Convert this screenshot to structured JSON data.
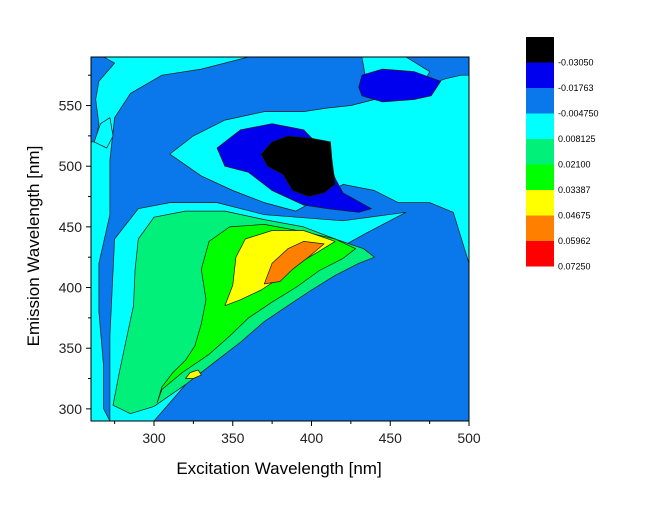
{
  "chart_data": {
    "type": "contour",
    "xlabel": "Excitation Wavelength [nm]",
    "ylabel": "Emission Wavelength [nm]",
    "xlim": [
      260,
      500
    ],
    "ylim": [
      290,
      590
    ],
    "x_ticks": [
      300,
      350,
      400,
      450,
      500
    ],
    "y_ticks": [
      300,
      350,
      400,
      450,
      500,
      550
    ],
    "x_tick_labels": [
      "300",
      "350",
      "400",
      "450",
      "500"
    ],
    "y_tick_labels": [
      "300",
      "350",
      "400",
      "450",
      "500",
      "550"
    ],
    "legend": {
      "placement": "right",
      "levels": [
        {
          "label": "-0.03050",
          "color": "#000000"
        },
        {
          "label": "-0.01763",
          "color": "#0000ee"
        },
        {
          "label": "-0.004750",
          "color": "#0a78ea"
        },
        {
          "label": "0.008125",
          "color": "#00ffff"
        },
        {
          "label": "0.02100",
          "color": "#00f07a"
        },
        {
          "label": "0.03387",
          "color": "#00ff00"
        },
        {
          "label": "0.04675",
          "color": "#ffff00"
        },
        {
          "label": "0.05962",
          "color": "#ff8000"
        },
        {
          "label": "0.07250",
          "color": "#ff0000"
        }
      ]
    },
    "background_color": "#0a78ea",
    "regions": [
      {
        "name": "cyan-left-band",
        "level": 3,
        "points": [
          [
            260,
            290
          ],
          [
            260,
            520
          ],
          [
            263,
            520
          ],
          [
            265,
            535
          ],
          [
            263,
            555
          ],
          [
            265,
            570
          ],
          [
            275,
            585
          ],
          [
            268,
            590
          ],
          [
            360,
            590
          ],
          [
            330,
            580
          ],
          [
            305,
            575
          ],
          [
            285,
            560
          ],
          [
            275,
            540
          ],
          [
            272,
            505
          ],
          [
            272,
            460
          ],
          [
            265,
            420
          ],
          [
            265,
            380
          ],
          [
            268,
            335
          ],
          [
            268,
            300
          ],
          [
            272,
            290
          ]
        ]
      },
      {
        "name": "cyan-emission-ridge",
        "level": 3,
        "points": [
          [
            272,
            290
          ],
          [
            272,
            360
          ],
          [
            275,
            440
          ],
          [
            290,
            465
          ],
          [
            310,
            470
          ],
          [
            340,
            470
          ],
          [
            370,
            460
          ],
          [
            420,
            455
          ],
          [
            460,
            462
          ],
          [
            435,
            445
          ],
          [
            400,
            420
          ],
          [
            370,
            390
          ],
          [
            345,
            360
          ],
          [
            320,
            320
          ],
          [
            300,
            290
          ]
        ]
      },
      {
        "name": "cyan-upper-lobe",
        "level": 3,
        "points": [
          [
            310,
            510
          ],
          [
            325,
            525
          ],
          [
            345,
            538
          ],
          [
            370,
            545
          ],
          [
            395,
            545
          ],
          [
            410,
            548
          ],
          [
            425,
            550
          ],
          [
            440,
            555
          ],
          [
            455,
            560
          ],
          [
            470,
            565
          ],
          [
            485,
            572
          ],
          [
            495,
            575
          ],
          [
            500,
            575
          ],
          [
            500,
            420
          ],
          [
            490,
            462
          ],
          [
            475,
            470
          ],
          [
            455,
            470
          ],
          [
            440,
            480
          ],
          [
            420,
            485
          ],
          [
            400,
            470
          ],
          [
            390,
            463
          ],
          [
            370,
            470
          ],
          [
            350,
            480
          ],
          [
            330,
            492
          ]
        ]
      },
      {
        "name": "cyan-corner-top-right",
        "level": 3,
        "points": [
          [
            432,
            590
          ],
          [
            460,
            590
          ],
          [
            475,
            578
          ],
          [
            470,
            565
          ],
          [
            450,
            560
          ],
          [
            435,
            568
          ]
        ]
      },
      {
        "name": "cyan-blob-left",
        "level": 3,
        "points": [
          [
            262,
            520
          ],
          [
            266,
            535
          ],
          [
            272,
            540
          ],
          [
            274,
            525
          ],
          [
            270,
            515
          ]
        ]
      },
      {
        "name": "green-main",
        "level": 4,
        "points": [
          [
            274,
            303
          ],
          [
            278,
            330
          ],
          [
            282,
            355
          ],
          [
            287,
            385
          ],
          [
            288,
            415
          ],
          [
            290,
            440
          ],
          [
            300,
            458
          ],
          [
            320,
            463
          ],
          [
            345,
            463
          ],
          [
            370,
            456
          ],
          [
            395,
            450
          ],
          [
            415,
            440
          ],
          [
            433,
            432
          ],
          [
            440,
            425
          ],
          [
            430,
            420
          ],
          [
            415,
            410
          ],
          [
            400,
            398
          ],
          [
            385,
            385
          ],
          [
            370,
            372
          ],
          [
            355,
            355
          ],
          [
            340,
            340
          ],
          [
            320,
            320
          ],
          [
            300,
            302
          ],
          [
            285,
            296
          ]
        ]
      },
      {
        "name": "green-bright",
        "level": 5,
        "points": [
          [
            302,
            305
          ],
          [
            305,
            318
          ],
          [
            312,
            330
          ],
          [
            320,
            340
          ],
          [
            326,
            352
          ],
          [
            330,
            370
          ],
          [
            333,
            390
          ],
          [
            330,
            415
          ],
          [
            335,
            438
          ],
          [
            348,
            450
          ],
          [
            370,
            452
          ],
          [
            395,
            446
          ],
          [
            415,
            440
          ],
          [
            428,
            432
          ],
          [
            420,
            424
          ],
          [
            405,
            414
          ],
          [
            390,
            400
          ],
          [
            375,
            388
          ],
          [
            360,
            375
          ],
          [
            348,
            360
          ],
          [
            335,
            345
          ],
          [
            318,
            330
          ],
          [
            305,
            316
          ]
        ]
      },
      {
        "name": "yellow-core",
        "level": 6,
        "points": [
          [
            345,
            385
          ],
          [
            350,
            402
          ],
          [
            352,
            425
          ],
          [
            358,
            440
          ],
          [
            375,
            447
          ],
          [
            395,
            447
          ],
          [
            415,
            438
          ],
          [
            405,
            430
          ],
          [
            392,
            420
          ],
          [
            380,
            408
          ],
          [
            368,
            398
          ],
          [
            355,
            390
          ]
        ]
      },
      {
        "name": "yellow-tail",
        "level": 6,
        "points": [
          [
            320,
            325
          ],
          [
            323,
            330
          ],
          [
            328,
            332
          ],
          [
            330,
            328
          ],
          [
            325,
            325
          ]
        ]
      },
      {
        "name": "orange-core",
        "level": 7,
        "points": [
          [
            370,
            403
          ],
          [
            375,
            420
          ],
          [
            385,
            432
          ],
          [
            395,
            438
          ],
          [
            408,
            436
          ],
          [
            398,
            425
          ],
          [
            388,
            415
          ],
          [
            380,
            405
          ]
        ]
      },
      {
        "name": "blue-dip-center",
        "level": 1,
        "points": [
          [
            340,
            515
          ],
          [
            355,
            530
          ],
          [
            375,
            535
          ],
          [
            395,
            530
          ],
          [
            410,
            510
          ],
          [
            415,
            490
          ],
          [
            420,
            478
          ],
          [
            438,
            465
          ],
          [
            430,
            462
          ],
          [
            410,
            465
          ],
          [
            395,
            468
          ],
          [
            375,
            480
          ],
          [
            360,
            495
          ],
          [
            345,
            500
          ]
        ]
      },
      {
        "name": "black-dip-center",
        "level": 0,
        "points": [
          [
            375,
            520
          ],
          [
            385,
            525
          ],
          [
            400,
            523
          ],
          [
            412,
            520
          ],
          [
            413,
            505
          ],
          [
            415,
            485
          ],
          [
            408,
            478
          ],
          [
            398,
            475
          ],
          [
            388,
            480
          ],
          [
            382,
            493
          ],
          [
            372,
            500
          ],
          [
            368,
            510
          ]
        ]
      },
      {
        "name": "blue-dip-top-right",
        "level": 1,
        "points": [
          [
            430,
            565
          ],
          [
            432,
            575
          ],
          [
            445,
            580
          ],
          [
            465,
            578
          ],
          [
            482,
            570
          ],
          [
            476,
            558
          ],
          [
            465,
            555
          ],
          [
            445,
            553
          ],
          [
            432,
            558
          ]
        ]
      }
    ]
  }
}
